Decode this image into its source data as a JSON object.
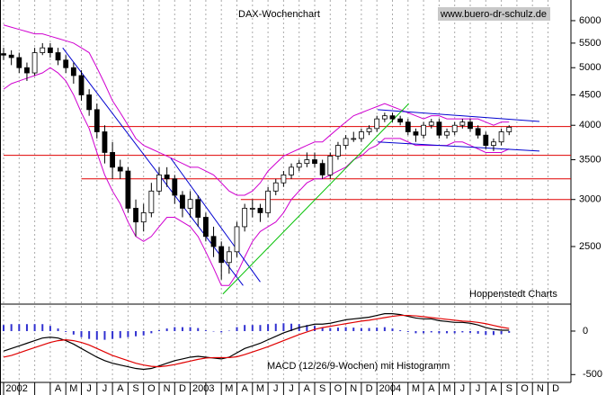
{
  "chart_data": [
    {
      "type": "candlestick",
      "title": "DAX-Wochenchart",
      "source": "www.buero-dr-schulz.de",
      "note": "Hoppenstedt Charts",
      "log_scale": true,
      "ylim": [
        2000,
        6500
      ],
      "yticks": [
        2500,
        3000,
        3500,
        4000,
        4500,
        5000,
        5500,
        6000
      ],
      "up_color": "#ffffff",
      "down_color": "#000000",
      "open": [
        5280,
        5250,
        5200,
        5000,
        4900,
        5300,
        5400,
        5300,
        5150,
        5000,
        4850,
        4500,
        4250,
        3900,
        3600,
        3400,
        3350,
        2900,
        2750,
        2850,
        3100,
        3300,
        3250,
        3050,
        2900,
        3000,
        2800,
        2600,
        2500,
        2350,
        2450,
        2700,
        2900,
        2900,
        2850,
        3100,
        3200,
        3300,
        3400,
        3450,
        3500,
        3450,
        3300,
        3550,
        3700,
        3800,
        3800,
        3900,
        3950,
        4100,
        4150,
        4100,
        4050,
        3900,
        3850,
        4000,
        4050,
        3850,
        3900,
        4000,
        4050,
        3950,
        3850,
        3700,
        3750,
        3900
      ],
      "high": [
        5400,
        5350,
        5300,
        5100,
        5400,
        5500,
        5500,
        5400,
        5250,
        5100,
        4950,
        4600,
        4350,
        4000,
        3750,
        3500,
        3400,
        3000,
        2950,
        3200,
        3400,
        3400,
        3300,
        3100,
        3100,
        3050,
        2850,
        2700,
        2550,
        2500,
        2750,
        2950,
        3000,
        2950,
        3150,
        3250,
        3350,
        3450,
        3500,
        3600,
        3600,
        3500,
        3600,
        3750,
        3850,
        3900,
        3950,
        4000,
        4150,
        4200,
        4200,
        4150,
        4100,
        3950,
        4050,
        4100,
        4100,
        3950,
        4050,
        4100,
        4100,
        4000,
        3900,
        3800,
        3950,
        4000
      ],
      "low": [
        5150,
        5050,
        4900,
        4750,
        4850,
        5250,
        5200,
        5050,
        4900,
        4700,
        4400,
        4150,
        3800,
        3450,
        3250,
        3250,
        2850,
        2600,
        2650,
        2800,
        3050,
        3150,
        2950,
        2800,
        2800,
        2700,
        2550,
        2400,
        2200,
        2250,
        2400,
        2650,
        2800,
        2750,
        2800,
        3050,
        3150,
        3250,
        3350,
        3400,
        3400,
        3250,
        3250,
        3500,
        3650,
        3750,
        3750,
        3850,
        3900,
        4050,
        4050,
        4000,
        3850,
        3750,
        3800,
        3950,
        3800,
        3800,
        3850,
        3950,
        3900,
        3800,
        3650,
        3620,
        3700,
        3850
      ],
      "close": [
        5250,
        5200,
        5000,
        4900,
        5300,
        5400,
        5300,
        5150,
        5000,
        4850,
        4500,
        4250,
        3900,
        3600,
        3400,
        3350,
        2900,
        2750,
        2850,
        3100,
        3300,
        3250,
        3050,
        2900,
        3000,
        2800,
        2600,
        2500,
        2350,
        2450,
        2700,
        2900,
        2900,
        2850,
        3100,
        3200,
        3300,
        3400,
        3450,
        3500,
        3450,
        3300,
        3550,
        3700,
        3800,
        3800,
        3900,
        3950,
        4100,
        4150,
        4100,
        4050,
        3900,
        3850,
        4000,
        4050,
        3850,
        3900,
        4000,
        4050,
        3950,
        3850,
        3700,
        3750,
        3900,
        3970
      ],
      "bands": [
        {
          "color": "#d000d0",
          "values": [
            5900,
            5850,
            5800,
            5750,
            5700,
            5700,
            5650,
            5600,
            5550,
            5500,
            5400,
            5300,
            5000,
            4700,
            4400,
            4200,
            4000,
            3800,
            3700,
            3650,
            3600,
            3550,
            3500,
            3450,
            3400,
            3400,
            3350,
            3300,
            3200,
            3100,
            3050,
            3050,
            3100,
            3200,
            3350,
            3450,
            3550,
            3600,
            3650,
            3700,
            3750,
            3750,
            3850,
            3950,
            4050,
            4150,
            4200,
            4250,
            4300,
            4350,
            4300,
            4250,
            4200,
            4150,
            4100,
            4150,
            4150,
            4100,
            4100,
            4100,
            4100,
            4100,
            4050,
            4000,
            4050,
            4050
          ]
        },
        {
          "color": "#d000d0",
          "values": [
            4600,
            4700,
            4750,
            4800,
            4850,
            4900,
            5000,
            4900,
            4750,
            4500,
            4200,
            3950,
            3600,
            3300,
            3100,
            2950,
            2750,
            2600,
            2550,
            2600,
            2700,
            2800,
            2800,
            2750,
            2700,
            2600,
            2450,
            2300,
            2150,
            2150,
            2250,
            2400,
            2550,
            2650,
            2700,
            2750,
            2850,
            3000,
            3100,
            3200,
            3250,
            3250,
            3300,
            3350,
            3400,
            3500,
            3550,
            3650,
            3700,
            3800,
            3800,
            3800,
            3750,
            3700,
            3700,
            3700,
            3700,
            3700,
            3750,
            3750,
            3700,
            3650,
            3600,
            3600,
            3600,
            3650
          ]
        }
      ],
      "hlines": [
        {
          "color": "#e00000",
          "value": 3980,
          "start": 11
        },
        {
          "color": "#e00000",
          "value": 3560,
          "start": 0
        },
        {
          "color": "#e00000",
          "value": 3250,
          "start": 10
        },
        {
          "color": "#e00000",
          "value": 3000,
          "start": 30.5
        }
      ],
      "trendlines": [
        {
          "color": "#0000d0",
          "x": [
            7.6,
            30.8
          ],
          "y": [
            5400,
            2150
          ]
        },
        {
          "color": "#0000d0",
          "x": [
            21.5,
            33
          ],
          "y": [
            3520,
            2180
          ]
        },
        {
          "color": "#0000d0",
          "x": [
            48.1,
            68.9
          ],
          "y": [
            4250,
            4060
          ]
        },
        {
          "color": "#0000d0",
          "x": [
            48.1,
            68.9
          ],
          "y": [
            3750,
            3620
          ]
        },
        {
          "color": "#00c000",
          "x": [
            28.2,
            52.1
          ],
          "y": [
            2080,
            4350
          ]
        }
      ]
    },
    {
      "type": "macd",
      "title": "MACD (12/26/9-Wochen) mit Histogramm",
      "ylim": [
        -590,
        310
      ],
      "yticks": [
        0,
        -500
      ],
      "month_labels": [
        "2002",
        null,
        null,
        "A",
        "M",
        "J",
        "J",
        "A",
        "S",
        "O",
        "N",
        "D",
        "2003",
        null,
        "M",
        "A",
        "M",
        "J",
        "J",
        "A",
        "S",
        "O",
        "N",
        "D",
        "2004",
        null,
        "M",
        "A",
        "M",
        "J",
        "J",
        "A",
        "S",
        "O",
        "N",
        "D"
      ],
      "series": [
        {
          "name": "MACD",
          "color": "#000000",
          "values": [
            -230,
            -200,
            -170,
            -140,
            -110,
            -80,
            -70,
            -80,
            -110,
            -150,
            -200,
            -250,
            -300,
            -340,
            -370,
            -390,
            -410,
            -430,
            -440,
            -430,
            -400,
            -370,
            -340,
            -320,
            -300,
            -290,
            -300,
            -310,
            -320,
            -300,
            -250,
            -200,
            -170,
            -140,
            -100,
            -60,
            -20,
            10,
            40,
            60,
            80,
            80,
            90,
            110,
            130,
            140,
            150,
            160,
            180,
            200,
            200,
            190,
            170,
            150,
            140,
            140,
            120,
            110,
            100,
            100,
            90,
            70,
            40,
            20,
            10,
            10
          ]
        },
        {
          "name": "Signal",
          "color": "#e00000",
          "values": [
            -300,
            -280,
            -250,
            -220,
            -190,
            -160,
            -130,
            -110,
            -100,
            -110,
            -130,
            -160,
            -200,
            -240,
            -280,
            -310,
            -340,
            -370,
            -390,
            -405,
            -410,
            -400,
            -385,
            -365,
            -345,
            -325,
            -310,
            -305,
            -305,
            -305,
            -295,
            -270,
            -240,
            -210,
            -180,
            -145,
            -110,
            -75,
            -40,
            -10,
            20,
            40,
            55,
            70,
            85,
            100,
            115,
            125,
            140,
            155,
            170,
            180,
            180,
            175,
            165,
            155,
            145,
            135,
            125,
            115,
            110,
            100,
            85,
            65,
            45,
            30
          ]
        },
        {
          "name": "Histogramm",
          "color": "#3030d0",
          "values": [
            70,
            80,
            80,
            80,
            80,
            80,
            60,
            30,
            -10,
            -40,
            -70,
            -90,
            -100,
            -100,
            -90,
            -80,
            -70,
            -60,
            -50,
            -25,
            10,
            30,
            45,
            45,
            45,
            35,
            10,
            -5,
            -15,
            5,
            45,
            70,
            70,
            70,
            80,
            85,
            90,
            85,
            80,
            70,
            60,
            40,
            35,
            40,
            45,
            40,
            35,
            35,
            40,
            45,
            30,
            10,
            -10,
            -25,
            -25,
            -15,
            -25,
            -25,
            -25,
            -15,
            -20,
            -30,
            -45,
            -45,
            -35,
            -20
          ]
        }
      ]
    }
  ]
}
